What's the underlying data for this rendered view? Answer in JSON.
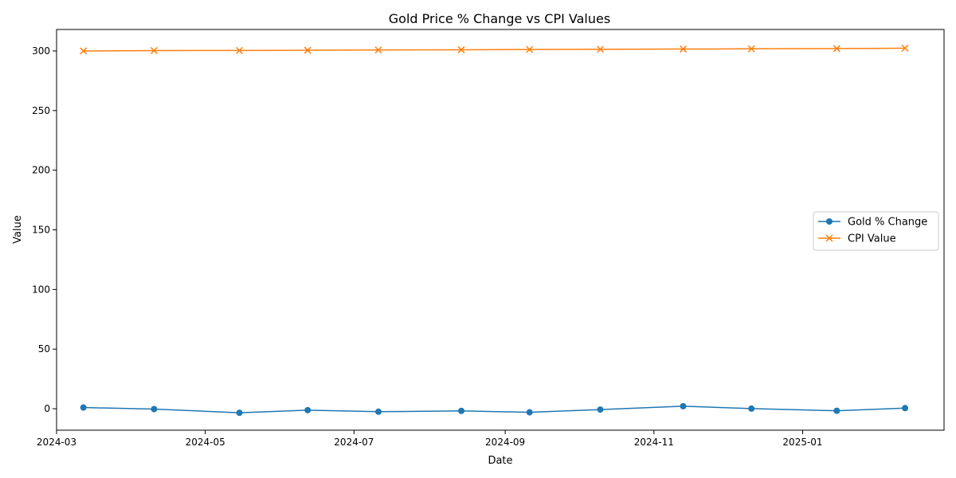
{
  "chart_data": {
    "type": "line",
    "title": "Gold Price % Change vs CPI Values",
    "xlabel": "Date",
    "ylabel": "Value",
    "x": [
      "2024-03-12",
      "2024-04-10",
      "2024-05-15",
      "2024-06-12",
      "2024-07-11",
      "2024-08-14",
      "2024-09-11",
      "2024-10-10",
      "2024-11-13",
      "2024-12-11",
      "2025-01-15",
      "2025-02-12"
    ],
    "xlim": [
      "2024-03-01",
      "2025-02-28"
    ],
    "xticks": [
      "2024-03",
      "2024-05",
      "2024-07",
      "2024-09",
      "2024-11",
      "2025-01"
    ],
    "ylim": [
      -18,
      318
    ],
    "yticks": [
      0,
      50,
      100,
      150,
      200,
      250,
      300
    ],
    "grid": false,
    "legend_position": "center-right",
    "series": [
      {
        "name": "Gold % Change",
        "color": "#1f77b4",
        "marker": "circle",
        "values": [
          1.0,
          -0.3,
          -3.4,
          -1.2,
          -2.5,
          -1.8,
          -3.0,
          -0.7,
          2.1,
          0.1,
          -1.7,
          0.5
        ]
      },
      {
        "name": "CPI Value",
        "color": "#ff7f0e",
        "marker": "x",
        "values": [
          300.0,
          300.3,
          300.4,
          300.6,
          300.8,
          301.0,
          301.2,
          301.4,
          301.6,
          301.8,
          302.0,
          302.3
        ]
      }
    ]
  }
}
